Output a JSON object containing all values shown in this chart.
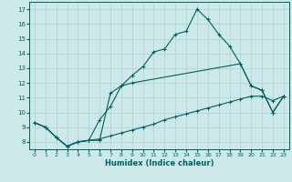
{
  "xlabel": "Humidex (Indice chaleur)",
  "xlim": [
    -0.5,
    23.5
  ],
  "ylim": [
    7.5,
    17.5
  ],
  "yticks": [
    8,
    9,
    10,
    11,
    12,
    13,
    14,
    15,
    16,
    17
  ],
  "xticks": [
    0,
    1,
    2,
    3,
    4,
    5,
    6,
    7,
    8,
    9,
    10,
    11,
    12,
    13,
    14,
    15,
    16,
    17,
    18,
    19,
    20,
    21,
    22,
    23
  ],
  "bg_color": "#cce8e8",
  "grid_color": "#aad0d0",
  "line_color": "#006060",
  "line1_x": [
    0,
    1,
    2,
    3,
    4,
    5,
    6,
    7,
    8,
    9,
    10,
    11,
    12,
    13,
    14,
    15,
    16,
    17,
    18,
    19,
    20,
    21,
    22,
    23
  ],
  "line1_y": [
    9.3,
    9.0,
    8.3,
    7.7,
    8.0,
    8.1,
    8.1,
    11.3,
    11.8,
    12.5,
    13.1,
    14.1,
    14.3,
    15.3,
    15.5,
    17.0,
    16.3,
    15.3,
    14.5,
    13.3,
    11.8,
    11.5,
    10.0,
    11.1
  ],
  "line2_x": [
    0,
    1,
    2,
    3,
    4,
    5,
    6,
    7,
    8,
    9,
    19,
    20,
    21,
    22,
    23
  ],
  "line2_y": [
    9.3,
    9.0,
    8.3,
    7.7,
    8.0,
    8.1,
    9.5,
    10.4,
    11.8,
    12.0,
    13.3,
    11.8,
    11.5,
    10.0,
    11.1
  ],
  "line3_x": [
    0,
    1,
    2,
    3,
    4,
    5,
    6,
    7,
    8,
    9,
    10,
    11,
    12,
    13,
    14,
    15,
    16,
    17,
    18,
    19,
    20,
    21,
    22,
    23
  ],
  "line3_y": [
    9.3,
    9.0,
    8.3,
    7.7,
    8.0,
    8.1,
    8.2,
    8.4,
    8.6,
    8.8,
    9.0,
    9.2,
    9.5,
    9.7,
    9.9,
    10.1,
    10.3,
    10.5,
    10.7,
    10.9,
    11.1,
    11.1,
    10.8,
    11.1
  ]
}
